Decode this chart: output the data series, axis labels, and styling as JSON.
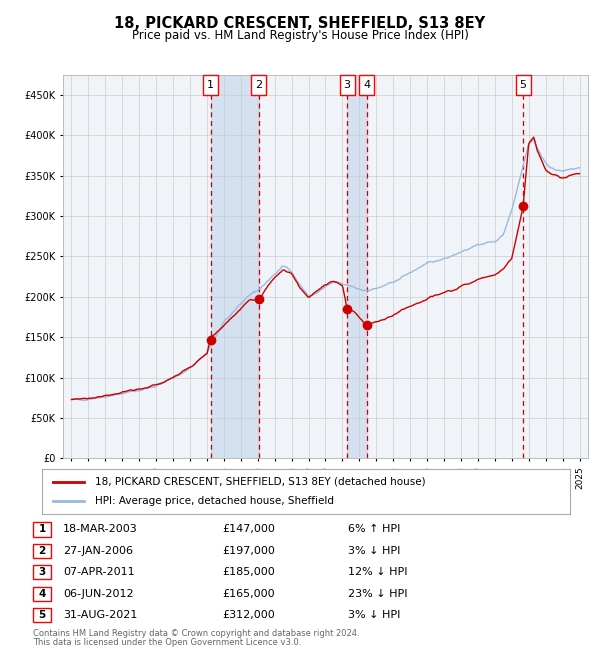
{
  "title": "18, PICKARD CRESCENT, SHEFFIELD, S13 8EY",
  "subtitle": "Price paid vs. HM Land Registry's House Price Index (HPI)",
  "legend_label_red": "18, PICKARD CRESCENT, SHEFFIELD, S13 8EY (detached house)",
  "legend_label_blue": "HPI: Average price, detached house, Sheffield",
  "footer_line1": "Contains HM Land Registry data © Crown copyright and database right 2024.",
  "footer_line2": "This data is licensed under the Open Government Licence v3.0.",
  "transactions": [
    {
      "num": 1,
      "date": "18-MAR-2003",
      "price": 147000,
      "pct": "6%",
      "dir": "↑",
      "year": 2003.21
    },
    {
      "num": 2,
      "date": "27-JAN-2006",
      "price": 197000,
      "pct": "3%",
      "dir": "↓",
      "year": 2006.07
    },
    {
      "num": 3,
      "date": "07-APR-2011",
      "price": 185000,
      "pct": "12%",
      "dir": "↓",
      "year": 2011.27
    },
    {
      "num": 4,
      "date": "06-JUN-2012",
      "price": 165000,
      "pct": "23%",
      "dir": "↓",
      "year": 2012.43
    },
    {
      "num": 5,
      "date": "31-AUG-2021",
      "price": 312000,
      "pct": "3%",
      "dir": "↓",
      "year": 2021.67
    }
  ],
  "background_color": "#ffffff",
  "plot_background": "#f0f4f8",
  "grid_color": "#cccccc",
  "red_color": "#cc0000",
  "blue_color": "#99bbdd",
  "dashed_color": "#cc0000",
  "shade_color": "#ccddf0",
  "ylim": [
    0,
    475000
  ],
  "xlim_start": 1994.5,
  "xlim_end": 2025.5,
  "hpi_anchors": [
    [
      1995.0,
      72000
    ],
    [
      1996.0,
      74000
    ],
    [
      1997.0,
      77000
    ],
    [
      1998.0,
      80000
    ],
    [
      1999.0,
      84000
    ],
    [
      2000.0,
      90000
    ],
    [
      2001.0,
      99000
    ],
    [
      2002.0,
      112000
    ],
    [
      2003.0,
      130000
    ],
    [
      2004.0,
      168000
    ],
    [
      2004.8,
      188000
    ],
    [
      2005.5,
      200000
    ],
    [
      2006.0,
      208000
    ],
    [
      2006.5,
      218000
    ],
    [
      2007.0,
      228000
    ],
    [
      2007.5,
      238000
    ],
    [
      2008.0,
      232000
    ],
    [
      2008.5,
      215000
    ],
    [
      2009.0,
      200000
    ],
    [
      2009.5,
      205000
    ],
    [
      2010.0,
      212000
    ],
    [
      2010.5,
      218000
    ],
    [
      2011.0,
      215000
    ],
    [
      2011.5,
      213000
    ],
    [
      2012.0,
      210000
    ],
    [
      2012.5,
      208000
    ],
    [
      2013.0,
      210000
    ],
    [
      2013.5,
      213000
    ],
    [
      2014.0,
      218000
    ],
    [
      2014.5,
      224000
    ],
    [
      2015.0,
      230000
    ],
    [
      2015.5,
      236000
    ],
    [
      2016.0,
      240000
    ],
    [
      2016.5,
      244000
    ],
    [
      2017.0,
      248000
    ],
    [
      2017.5,
      252000
    ],
    [
      2018.0,
      256000
    ],
    [
      2018.5,
      260000
    ],
    [
      2019.0,
      264000
    ],
    [
      2019.5,
      267000
    ],
    [
      2020.0,
      268000
    ],
    [
      2020.5,
      278000
    ],
    [
      2021.0,
      308000
    ],
    [
      2021.5,
      350000
    ],
    [
      2022.0,
      390000
    ],
    [
      2022.3,
      395000
    ],
    [
      2022.5,
      385000
    ],
    [
      2022.8,
      372000
    ],
    [
      2023.0,
      365000
    ],
    [
      2023.3,
      360000
    ],
    [
      2023.6,
      358000
    ],
    [
      2024.0,
      355000
    ],
    [
      2024.5,
      358000
    ],
    [
      2025.0,
      360000
    ]
  ],
  "red_anchors": [
    [
      1995.0,
      73000
    ],
    [
      1996.0,
      75000
    ],
    [
      1997.0,
      78000
    ],
    [
      1998.0,
      81000
    ],
    [
      1999.0,
      85000
    ],
    [
      2000.0,
      91000
    ],
    [
      2001.0,
      100000
    ],
    [
      2002.0,
      113000
    ],
    [
      2003.0,
      128000
    ],
    [
      2003.21,
      147000
    ],
    [
      2004.0,
      165000
    ],
    [
      2004.8,
      182000
    ],
    [
      2005.5,
      196000
    ],
    [
      2006.07,
      197000
    ],
    [
      2006.5,
      210000
    ],
    [
      2007.0,
      225000
    ],
    [
      2007.5,
      235000
    ],
    [
      2008.0,
      228000
    ],
    [
      2008.5,
      212000
    ],
    [
      2009.0,
      200000
    ],
    [
      2009.5,
      207000
    ],
    [
      2010.0,
      214000
    ],
    [
      2010.5,
      220000
    ],
    [
      2011.0,
      215000
    ],
    [
      2011.27,
      185000
    ],
    [
      2011.7,
      182000
    ],
    [
      2012.0,
      175000
    ],
    [
      2012.43,
      165000
    ],
    [
      2013.0,
      168000
    ],
    [
      2013.5,
      172000
    ],
    [
      2014.0,
      177000
    ],
    [
      2014.5,
      183000
    ],
    [
      2015.0,
      188000
    ],
    [
      2015.5,
      193000
    ],
    [
      2016.0,
      197000
    ],
    [
      2016.5,
      201000
    ],
    [
      2017.0,
      205000
    ],
    [
      2017.5,
      209000
    ],
    [
      2018.0,
      213000
    ],
    [
      2018.5,
      217000
    ],
    [
      2019.0,
      221000
    ],
    [
      2019.5,
      224000
    ],
    [
      2020.0,
      226000
    ],
    [
      2020.5,
      235000
    ],
    [
      2021.0,
      248000
    ],
    [
      2021.67,
      312000
    ],
    [
      2022.0,
      390000
    ],
    [
      2022.3,
      398000
    ],
    [
      2022.5,
      382000
    ],
    [
      2022.8,
      368000
    ],
    [
      2023.0,
      358000
    ],
    [
      2023.3,
      352000
    ],
    [
      2023.6,
      350000
    ],
    [
      2024.0,
      347000
    ],
    [
      2024.5,
      350000
    ],
    [
      2025.0,
      352000
    ]
  ]
}
